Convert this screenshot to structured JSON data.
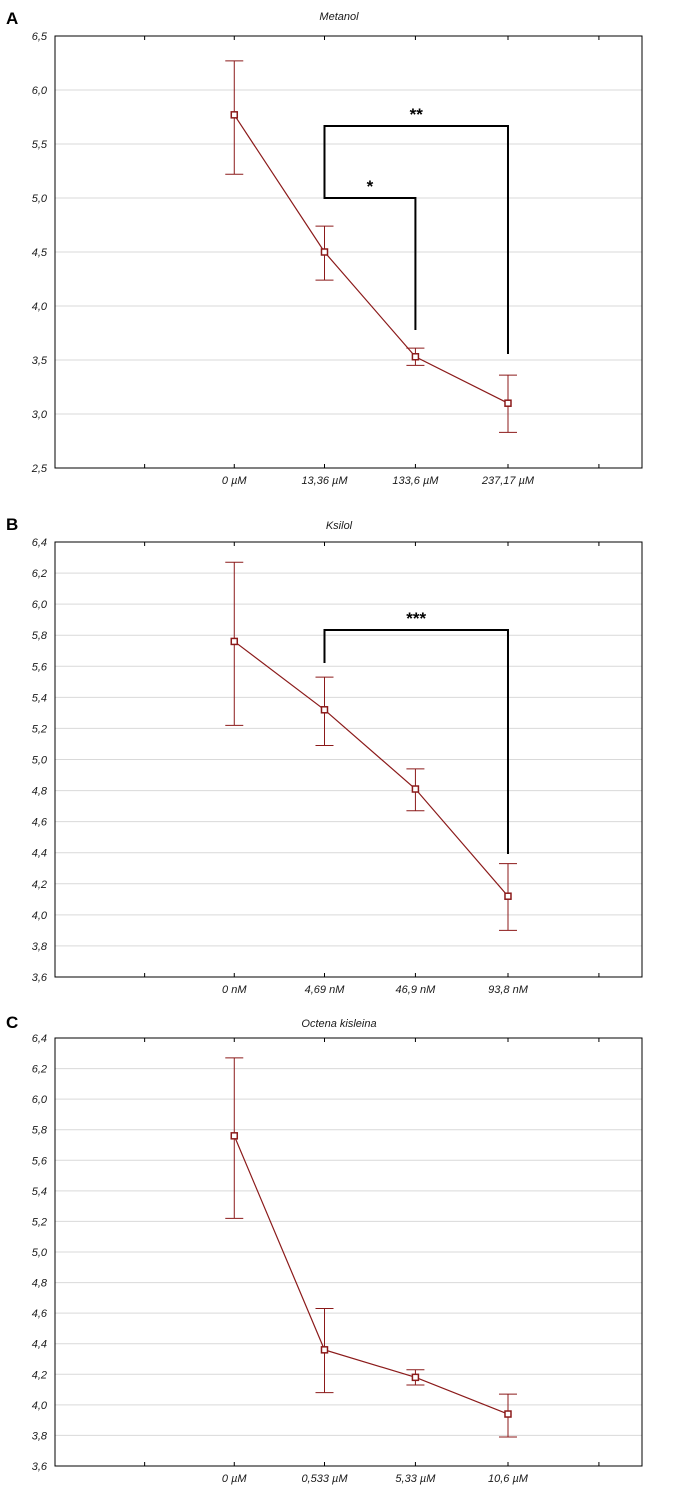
{
  "chart_data": [
    {
      "panel": "A",
      "type": "line",
      "title": "Metanol",
      "categories": [
        "0 µM",
        "13,36 µM",
        "133,6 µM",
        "237,17 µM"
      ],
      "y_ticks": [
        "2,5",
        "3,0",
        "3,5",
        "4,0",
        "4,5",
        "5,0",
        "5,5",
        "6,0",
        "6,5"
      ],
      "ylim": [
        2.5,
        6.5
      ],
      "grid": true,
      "series": [
        {
          "mean": [
            5.77,
            4.5,
            3.53,
            3.1
          ],
          "lower": [
            5.22,
            4.24,
            3.45,
            2.83
          ],
          "upper": [
            6.27,
            4.74,
            3.61,
            3.36
          ]
        }
      ],
      "annotations": [
        {
          "label": "*",
          "from": "13,36 µM",
          "to": "133,6 µM"
        },
        {
          "label": "**",
          "from": "13,36 µM",
          "to": "237,17 µM"
        }
      ]
    },
    {
      "panel": "B",
      "type": "line",
      "title": "Ksilol",
      "categories": [
        "0 nM",
        "4,69 nM",
        "46,9 nM",
        "93,8 nM"
      ],
      "y_ticks": [
        "3,6",
        "3,8",
        "4,0",
        "4,2",
        "4,4",
        "4,6",
        "4,8",
        "5,0",
        "5,2",
        "5,4",
        "5,6",
        "5,8",
        "6,0",
        "6,2",
        "6,4"
      ],
      "ylim": [
        3.6,
        6.4
      ],
      "grid": true,
      "series": [
        {
          "mean": [
            5.76,
            5.32,
            4.81,
            4.12
          ],
          "lower": [
            5.22,
            5.09,
            4.67,
            3.9
          ],
          "upper": [
            6.27,
            5.53,
            4.94,
            4.33
          ]
        }
      ],
      "annotations": [
        {
          "label": "***",
          "from": "4,69 nM",
          "to": "93,8 nM"
        }
      ]
    },
    {
      "panel": "C",
      "type": "line",
      "title": "Octena kisleina",
      "categories": [
        "0 µM",
        "0,533 µM",
        "5,33 µM",
        "10,6 µM"
      ],
      "y_ticks": [
        "3,6",
        "3,8",
        "4,0",
        "4,2",
        "4,4",
        "4,6",
        "4,8",
        "5,0",
        "5,2",
        "5,4",
        "5,6",
        "5,8",
        "6,0",
        "6,2",
        "6,4"
      ],
      "ylim": [
        3.6,
        6.4
      ],
      "grid": true,
      "series": [
        {
          "mean": [
            5.76,
            4.36,
            4.18,
            3.94
          ],
          "lower": [
            5.22,
            4.08,
            4.13,
            3.79
          ],
          "upper": [
            6.27,
            4.63,
            4.23,
            4.07
          ]
        }
      ],
      "annotations": []
    }
  ],
  "colors": {
    "series": "#8b1a1a",
    "grid": "#d9d9d9",
    "frame": "#000000"
  }
}
